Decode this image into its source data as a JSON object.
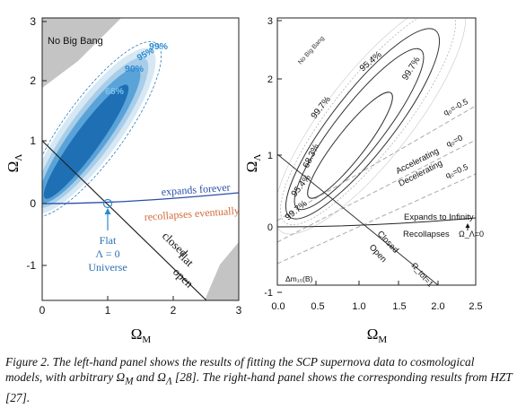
{
  "caption": {
    "part1": "Figure 2. The left-hand panel shows the results of fitting the SCP supernova data to cosmological models, with arbitrary ",
    "sym_m": "Ω",
    "sub_m": "M",
    "part2": " and ",
    "sym_l": "Ω",
    "sub_l": "Λ",
    "part3": " [28]. The right-hand panel shows the corresponding results from HZT [27]."
  },
  "chart_data": [
    {
      "type": "contour",
      "panel": "left",
      "xlabel": "Ω_M",
      "ylabel": "Ω_Λ",
      "xlim": [
        0,
        3
      ],
      "ylim": [
        -1.6,
        3
      ],
      "xticks": [
        "0",
        "1",
        "2",
        "3"
      ],
      "yticks": [
        "-1",
        "0",
        "1",
        "2",
        "3"
      ],
      "confidence_levels": [
        "68%",
        "90%",
        "95%",
        "99%"
      ],
      "region_label": "No Big Bang",
      "lines": [
        {
          "label": "expands forever",
          "color": "#2a4fa8"
        },
        {
          "label": "recollapses eventually",
          "color": "#d06a3a"
        },
        {
          "label": "closed",
          "color": "#111111"
        },
        {
          "label": "flat",
          "color": "#111111"
        },
        {
          "label": "open",
          "color": "#111111"
        }
      ],
      "marker": {
        "x": 1,
        "y": 0,
        "label_lines": [
          "Flat",
          "Λ = 0",
          "Universe"
        ]
      },
      "colors": {
        "c68": "#1f6fb5",
        "c90": "#5aa3d8",
        "c95": "#a8cde9",
        "c99": "#d6e8f4",
        "shade": "#bdbdbd"
      }
    },
    {
      "type": "contour",
      "panel": "right",
      "xlabel": "Ω_M",
      "ylabel": "Ω_Λ",
      "xlim": [
        0,
        2.5
      ],
      "ylim": [
        -1.1,
        3
      ],
      "xticks": [
        "0.0",
        "0.5",
        "1.0",
        "1.5",
        "2.0",
        "2.5"
      ],
      "yticks": [
        "-1",
        "0",
        "1",
        "2",
        "3"
      ],
      "confidence_levels": [
        "68.3%",
        "95.4%",
        "99.7%"
      ],
      "region_label": "No Big Bang",
      "labels": {
        "q_m05": "q₀=-0.5",
        "q_0": "q₀=0",
        "q_05": "q₀=0.5",
        "accelerating": "Accelerating",
        "decelerating": "Decelerating",
        "expands": "Expands to Infinity",
        "recollapses": "Recollapses",
        "omega_lambda0": "Ω_Λ=0",
        "closed": "Closed",
        "open": "Open",
        "omega_tot": "Ω_tot=1",
        "dm": "Δm₁₅(B)"
      }
    }
  ]
}
